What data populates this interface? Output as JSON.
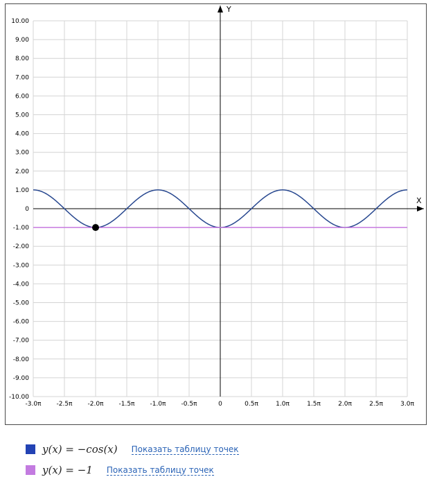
{
  "chart_data": {
    "type": "line",
    "xlabel": "X",
    "ylabel": "Y",
    "xlim_pi": [
      -3.0,
      3.0
    ],
    "ylim": [
      -10,
      10
    ],
    "grid": true,
    "x_ticks": [
      "-3.0π",
      "-2.5π",
      "-2.0π",
      "-1.5π",
      "-1.0π",
      "-0.5π",
      "0",
      "0.5π",
      "1.0π",
      "1.5π",
      "2.0π",
      "2.5π",
      "3.0π"
    ],
    "y_ticks": [
      "10.00",
      "9.00",
      "8.00",
      "7.00",
      "6.00",
      "5.00",
      "4.00",
      "3.00",
      "2.00",
      "1.00",
      "0",
      "-1.00",
      "-2.00",
      "-3.00",
      "-4.00",
      "-5.00",
      "-6.00",
      "-7.00",
      "-8.00",
      "-9.00",
      "-10.00"
    ],
    "series": [
      {
        "name": "y(x) = −cos(x)",
        "function": "-cos(x)",
        "color": "#27478f"
      },
      {
        "name": "y(x) = −1",
        "function": "-1",
        "color": "#c77ae0"
      }
    ],
    "highlight_point": {
      "x_pi": -2.0,
      "y": -1.0,
      "color": "#000000"
    }
  },
  "legend": [
    {
      "formula": "y(x) = −cos(x)",
      "link": "Показать таблицу точек",
      "color": "#2343b4"
    },
    {
      "formula": "y(x) = −1",
      "link": "Показать таблицу точек",
      "color": "#c37be0"
    }
  ]
}
